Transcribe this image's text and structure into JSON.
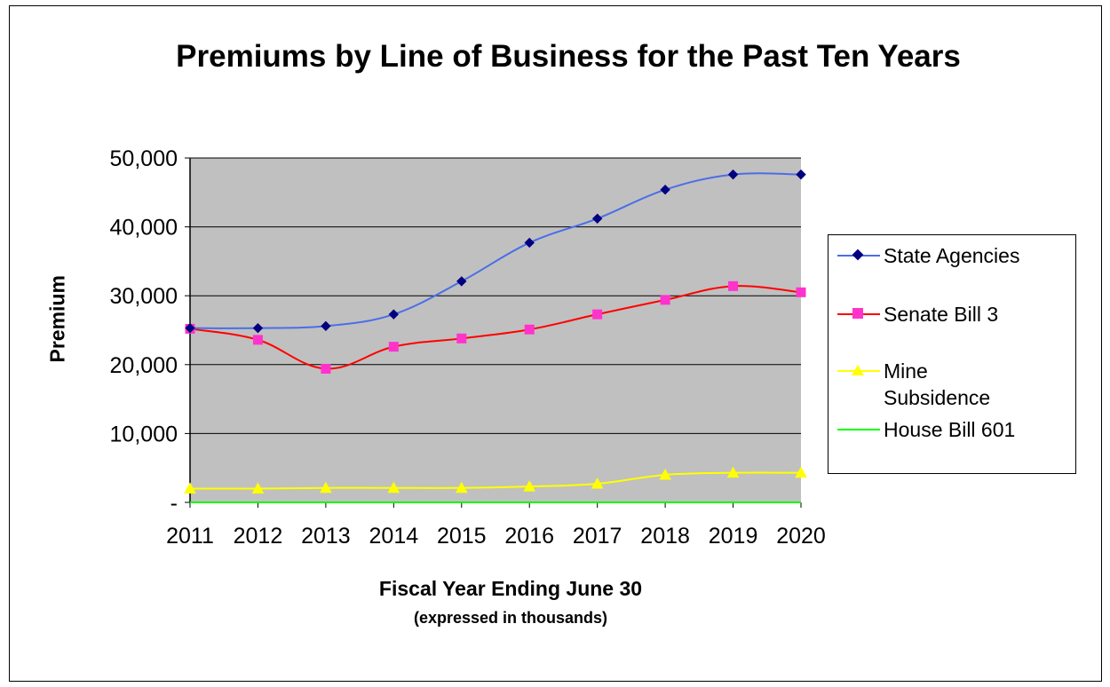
{
  "chart_data": {
    "type": "line",
    "title": "Premiums by Line of Business for the Past Ten Years",
    "xlabel": "Fiscal Year Ending June 30",
    "xlabel_sub": "(expressed in thousands)",
    "ylabel": "Premium",
    "categories": [
      "2011",
      "2012",
      "2013",
      "2014",
      "2015",
      "2016",
      "2017",
      "2018",
      "2019",
      "2020"
    ],
    "ylim": [
      0,
      50000
    ],
    "yticks": [
      0,
      10000,
      20000,
      30000,
      40000,
      50000
    ],
    "ytick_labels": [
      "-",
      "10,000",
      "20,000",
      "30,000",
      "40,000",
      "50,000"
    ],
    "grid": true,
    "plot_background": "#c0c0c0",
    "legend_position": "right",
    "series": [
      {
        "name": "State Agencies",
        "color": "#4a6ee8",
        "marker_color": "#000080",
        "marker": "diamond",
        "values": [
          25300,
          25300,
          25600,
          27300,
          32100,
          37700,
          41200,
          45400,
          47600,
          47600
        ]
      },
      {
        "name": "Senate Bill 3",
        "color": "#ff0000",
        "marker_color": "#ff33cc",
        "marker": "square",
        "values": [
          25200,
          23600,
          19400,
          22600,
          23800,
          25100,
          27300,
          29400,
          31400,
          30500
        ]
      },
      {
        "name": "Mine Subsidence",
        "color": "#ffff00",
        "marker_color": "#ffff00",
        "marker": "triangle",
        "values": [
          2000,
          2000,
          2100,
          2100,
          2100,
          2300,
          2700,
          4000,
          4300,
          4300
        ]
      },
      {
        "name": "House Bill 601",
        "color": "#00ff00",
        "marker_color": "#00ff00",
        "marker": "none",
        "values": [
          0,
          0,
          0,
          0,
          0,
          0,
          0,
          0,
          0,
          0
        ]
      }
    ],
    "legend_labels": [
      [
        "State Agencies"
      ],
      [
        "Senate Bill 3"
      ],
      [
        "Mine",
        "Subsidence"
      ],
      [
        "House Bill 601"
      ]
    ]
  }
}
